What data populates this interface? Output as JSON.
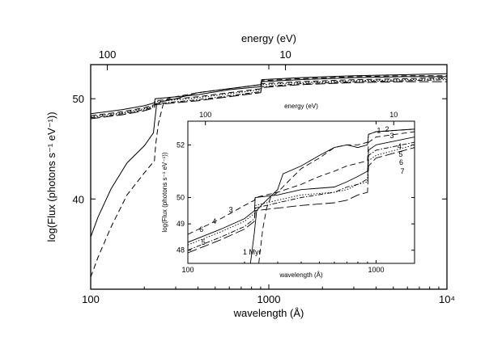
{
  "chart_data": [
    {
      "type": "line",
      "panel": "main",
      "x_scale": "log",
      "xlim": [
        100,
        10000
      ],
      "ylim": [
        31,
        53.4
      ],
      "xlabel": "wavelength (Å)",
      "ylabel": "log(Flux (photons s⁻¹ eV⁻¹))",
      "top_axis_label": "energy (eV)",
      "x_ticks": [
        {
          "value": 100,
          "label": "100"
        },
        {
          "value": 1000,
          "label": "1000"
        },
        {
          "value": 10000,
          "label": "10⁴"
        }
      ],
      "y_ticks": [
        {
          "value": 40,
          "label": "40"
        },
        {
          "value": 50,
          "label": "50"
        }
      ],
      "top_ticks": [
        {
          "wavelength": 124,
          "label": "100"
        },
        {
          "wavelength": 1240,
          "label": "10"
        }
      ],
      "series": [
        {
          "style": "solid",
          "points": [
            [
              100,
              36.2
            ],
            [
              110,
              38.2
            ],
            [
              130,
              41.0
            ],
            [
              160,
              43.6
            ],
            [
              200,
              45.3
            ],
            [
              225,
              46.6
            ],
            [
              228,
              47.5
            ],
            [
              235,
              49.5
            ],
            [
              250,
              49.7
            ],
            [
              300,
              50.0
            ],
            [
              400,
              50.6
            ],
            [
              600,
              51.0
            ],
            [
              900,
              51.4
            ],
            [
              912,
              51.9
            ],
            [
              1500,
              52.1
            ],
            [
              3000,
              52.3
            ],
            [
              6000,
              52.4
            ],
            [
              10000,
              52.5
            ]
          ]
        },
        {
          "style": "dashed",
          "points": [
            [
              100,
              32.2
            ],
            [
              110,
              34.2
            ],
            [
              130,
              37.2
            ],
            [
              160,
              40.4
            ],
            [
              200,
              42.6
            ],
            [
              228,
              43.8
            ],
            [
              232,
              45.5
            ],
            [
              240,
              47.5
            ],
            [
              255,
              49.4
            ],
            [
              270,
              50.0
            ],
            [
              300,
              50.2
            ],
            [
              400,
              50.6
            ],
            [
              600,
              51.0
            ],
            [
              900,
              51.4
            ],
            [
              912,
              51.8
            ],
            [
              1500,
              52.0
            ],
            [
              3000,
              52.2
            ],
            [
              6000,
              52.3
            ],
            [
              10000,
              52.3
            ]
          ]
        },
        {
          "style": "solid",
          "points": [
            [
              100,
              48.5
            ],
            [
              150,
              48.9
            ],
            [
              200,
              49.3
            ],
            [
              228,
              49.6
            ],
            [
              230,
              50.0
            ],
            [
              400,
              50.4
            ],
            [
              600,
              50.9
            ],
            [
              900,
              51.2
            ],
            [
              912,
              51.7
            ],
            [
              1500,
              51.9
            ],
            [
              3000,
              52.1
            ],
            [
              6000,
              52.2
            ],
            [
              10000,
              52.2
            ]
          ]
        },
        {
          "style": "dashed",
          "points": [
            [
              100,
              48.3
            ],
            [
              150,
              48.7
            ],
            [
              200,
              49.1
            ],
            [
              228,
              49.4
            ],
            [
              230,
              49.8
            ],
            [
              400,
              50.2
            ],
            [
              600,
              50.6
            ],
            [
              900,
              51.0
            ],
            [
              912,
              51.5
            ],
            [
              1500,
              51.7
            ],
            [
              3000,
              51.9
            ],
            [
              6000,
              52.0
            ],
            [
              10000,
              52.1
            ]
          ]
        },
        {
          "style": "dashdot",
          "points": [
            [
              100,
              48.1
            ],
            [
              150,
              48.5
            ],
            [
              200,
              48.9
            ],
            [
              228,
              49.2
            ],
            [
              230,
              49.5
            ],
            [
              400,
              49.9
            ],
            [
              600,
              50.3
            ],
            [
              900,
              50.7
            ],
            [
              912,
              51.2
            ],
            [
              1500,
              51.5
            ],
            [
              3000,
              51.7
            ],
            [
              6000,
              51.8
            ],
            [
              10000,
              51.9
            ]
          ]
        },
        {
          "style": "dotted",
          "points": [
            [
              100,
              48.2
            ],
            [
              150,
              48.6
            ],
            [
              200,
              49.0
            ],
            [
              228,
              49.3
            ],
            [
              230,
              49.7
            ],
            [
              400,
              50.1
            ],
            [
              600,
              50.5
            ],
            [
              900,
              50.9
            ],
            [
              912,
              51.4
            ],
            [
              1500,
              51.6
            ],
            [
              3000,
              51.8
            ],
            [
              6000,
              51.9
            ],
            [
              10000,
              52.0
            ]
          ]
        },
        {
          "style": "longdash",
          "points": [
            [
              100,
              48.0
            ],
            [
              150,
              48.4
            ],
            [
              200,
              48.8
            ],
            [
              228,
              49.1
            ],
            [
              230,
              49.4
            ],
            [
              400,
              49.8
            ],
            [
              600,
              50.2
            ],
            [
              900,
              50.6
            ],
            [
              912,
              51.1
            ],
            [
              1500,
              51.4
            ],
            [
              3000,
              51.6
            ],
            [
              6000,
              51.7
            ],
            [
              10000,
              51.7
            ]
          ]
        }
      ]
    },
    {
      "type": "line",
      "panel": "inset",
      "x_scale": "log",
      "xlim": [
        100,
        1600
      ],
      "ylim": [
        47.5,
        52.9
      ],
      "xlabel": "wavelength (Å)",
      "ylabel": "log(Flux (photons s⁻¹ eV⁻¹))",
      "top_axis_label": "energy (eV)",
      "x_ticks": [
        {
          "value": 100,
          "label": "100"
        },
        {
          "value": 1000,
          "label": "1000"
        }
      ],
      "y_ticks": [
        {
          "value": 48,
          "label": "48"
        },
        {
          "value": 49,
          "label": "49"
        },
        {
          "value": 50,
          "label": "50"
        },
        {
          "value": 52,
          "label": "52"
        }
      ],
      "top_ticks": [
        {
          "wavelength": 124,
          "label": "100"
        },
        {
          "wavelength": 1240,
          "label": "10"
        }
      ],
      "annotation": "1 Myr",
      "series": [
        {
          "label": "1",
          "style": "solid",
          "points": [
            [
              215,
              47.5
            ],
            [
              225,
              48.6
            ],
            [
              232,
              49.5
            ],
            [
              245,
              49.7
            ],
            [
              300,
              50.3
            ],
            [
              320,
              50.9
            ],
            [
              400,
              51.2
            ],
            [
              500,
              51.6
            ],
            [
              600,
              51.9
            ],
            [
              700,
              52.0
            ],
            [
              800,
              51.9
            ],
            [
              900,
              52.0
            ],
            [
              912,
              52.4
            ],
            [
              1000,
              52.5
            ],
            [
              1600,
              52.6
            ]
          ]
        },
        {
          "label": "2",
          "style": "dashed",
          "points": [
            [
              238,
              47.5
            ],
            [
              250,
              48.8
            ],
            [
              262,
              49.6
            ],
            [
              275,
              50.0
            ],
            [
              300,
              50.2
            ],
            [
              340,
              50.6
            ],
            [
              400,
              51.1
            ],
            [
              500,
              51.5
            ],
            [
              600,
              51.9
            ],
            [
              700,
              52.0
            ],
            [
              800,
              52.0
            ],
            [
              900,
              52.1
            ],
            [
              912,
              52.4
            ],
            [
              1000,
              52.5
            ],
            [
              1600,
              52.6
            ]
          ]
        },
        {
          "label": "3",
          "style": "dashed",
          "points": [
            [
              100,
              48.6
            ],
            [
              150,
              49.2
            ],
            [
              200,
              49.7
            ],
            [
              226,
              49.9
            ],
            [
              228,
              50.0
            ],
            [
              300,
              50.2
            ],
            [
              400,
              50.5
            ],
            [
              500,
              50.8
            ],
            [
              600,
              51.0
            ],
            [
              700,
              51.2
            ],
            [
              800,
              51.3
            ],
            [
              900,
              51.4
            ],
            [
              912,
              52.1
            ],
            [
              1000,
              52.3
            ],
            [
              1600,
              52.5
            ]
          ]
        },
        {
          "label": "4",
          "style": "solid",
          "points": [
            [
              100,
              48.3
            ],
            [
              150,
              48.8
            ],
            [
              200,
              49.2
            ],
            [
              226,
              49.5
            ],
            [
              228,
              50.0
            ],
            [
              300,
              50.1
            ],
            [
              400,
              50.3
            ],
            [
              600,
              50.4
            ],
            [
              700,
              50.6
            ],
            [
              800,
              50.8
            ],
            [
              900,
              51.0
            ],
            [
              912,
              51.8
            ],
            [
              1000,
              52.0
            ],
            [
              1600,
              52.3
            ]
          ]
        },
        {
          "label": "5",
          "style": "dashdot",
          "points": [
            [
              100,
              48.0
            ],
            [
              150,
              48.5
            ],
            [
              200,
              48.9
            ],
            [
              226,
              49.2
            ],
            [
              228,
              49.6
            ],
            [
              300,
              49.8
            ],
            [
              400,
              50.0
            ],
            [
              600,
              50.2
            ],
            [
              700,
              50.4
            ],
            [
              800,
              50.5
            ],
            [
              900,
              50.7
            ],
            [
              912,
              51.6
            ],
            [
              1000,
              51.8
            ],
            [
              1600,
              52.1
            ]
          ]
        },
        {
          "label": "6",
          "style": "dotted",
          "points": [
            [
              100,
              48.2
            ],
            [
              150,
              48.7
            ],
            [
              200,
              49.1
            ],
            [
              226,
              49.4
            ],
            [
              228,
              49.7
            ],
            [
              300,
              49.9
            ],
            [
              400,
              50.1
            ],
            [
              600,
              50.2
            ],
            [
              700,
              50.3
            ],
            [
              800,
              50.5
            ],
            [
              900,
              50.6
            ],
            [
              912,
              51.4
            ],
            [
              1000,
              51.6
            ],
            [
              1600,
              52.0
            ]
          ]
        },
        {
          "label": "7",
          "style": "longdash",
          "points": [
            [
              100,
              47.9
            ],
            [
              150,
              48.4
            ],
            [
              200,
              48.8
            ],
            [
              226,
              49.1
            ],
            [
              228,
              49.5
            ],
            [
              300,
              49.6
            ],
            [
              400,
              49.7
            ],
            [
              600,
              49.8
            ],
            [
              700,
              49.9
            ],
            [
              800,
              50.1
            ],
            [
              900,
              50.2
            ],
            [
              912,
              51.2
            ],
            [
              1000,
              51.5
            ],
            [
              1600,
              51.9
            ]
          ]
        }
      ]
    }
  ]
}
